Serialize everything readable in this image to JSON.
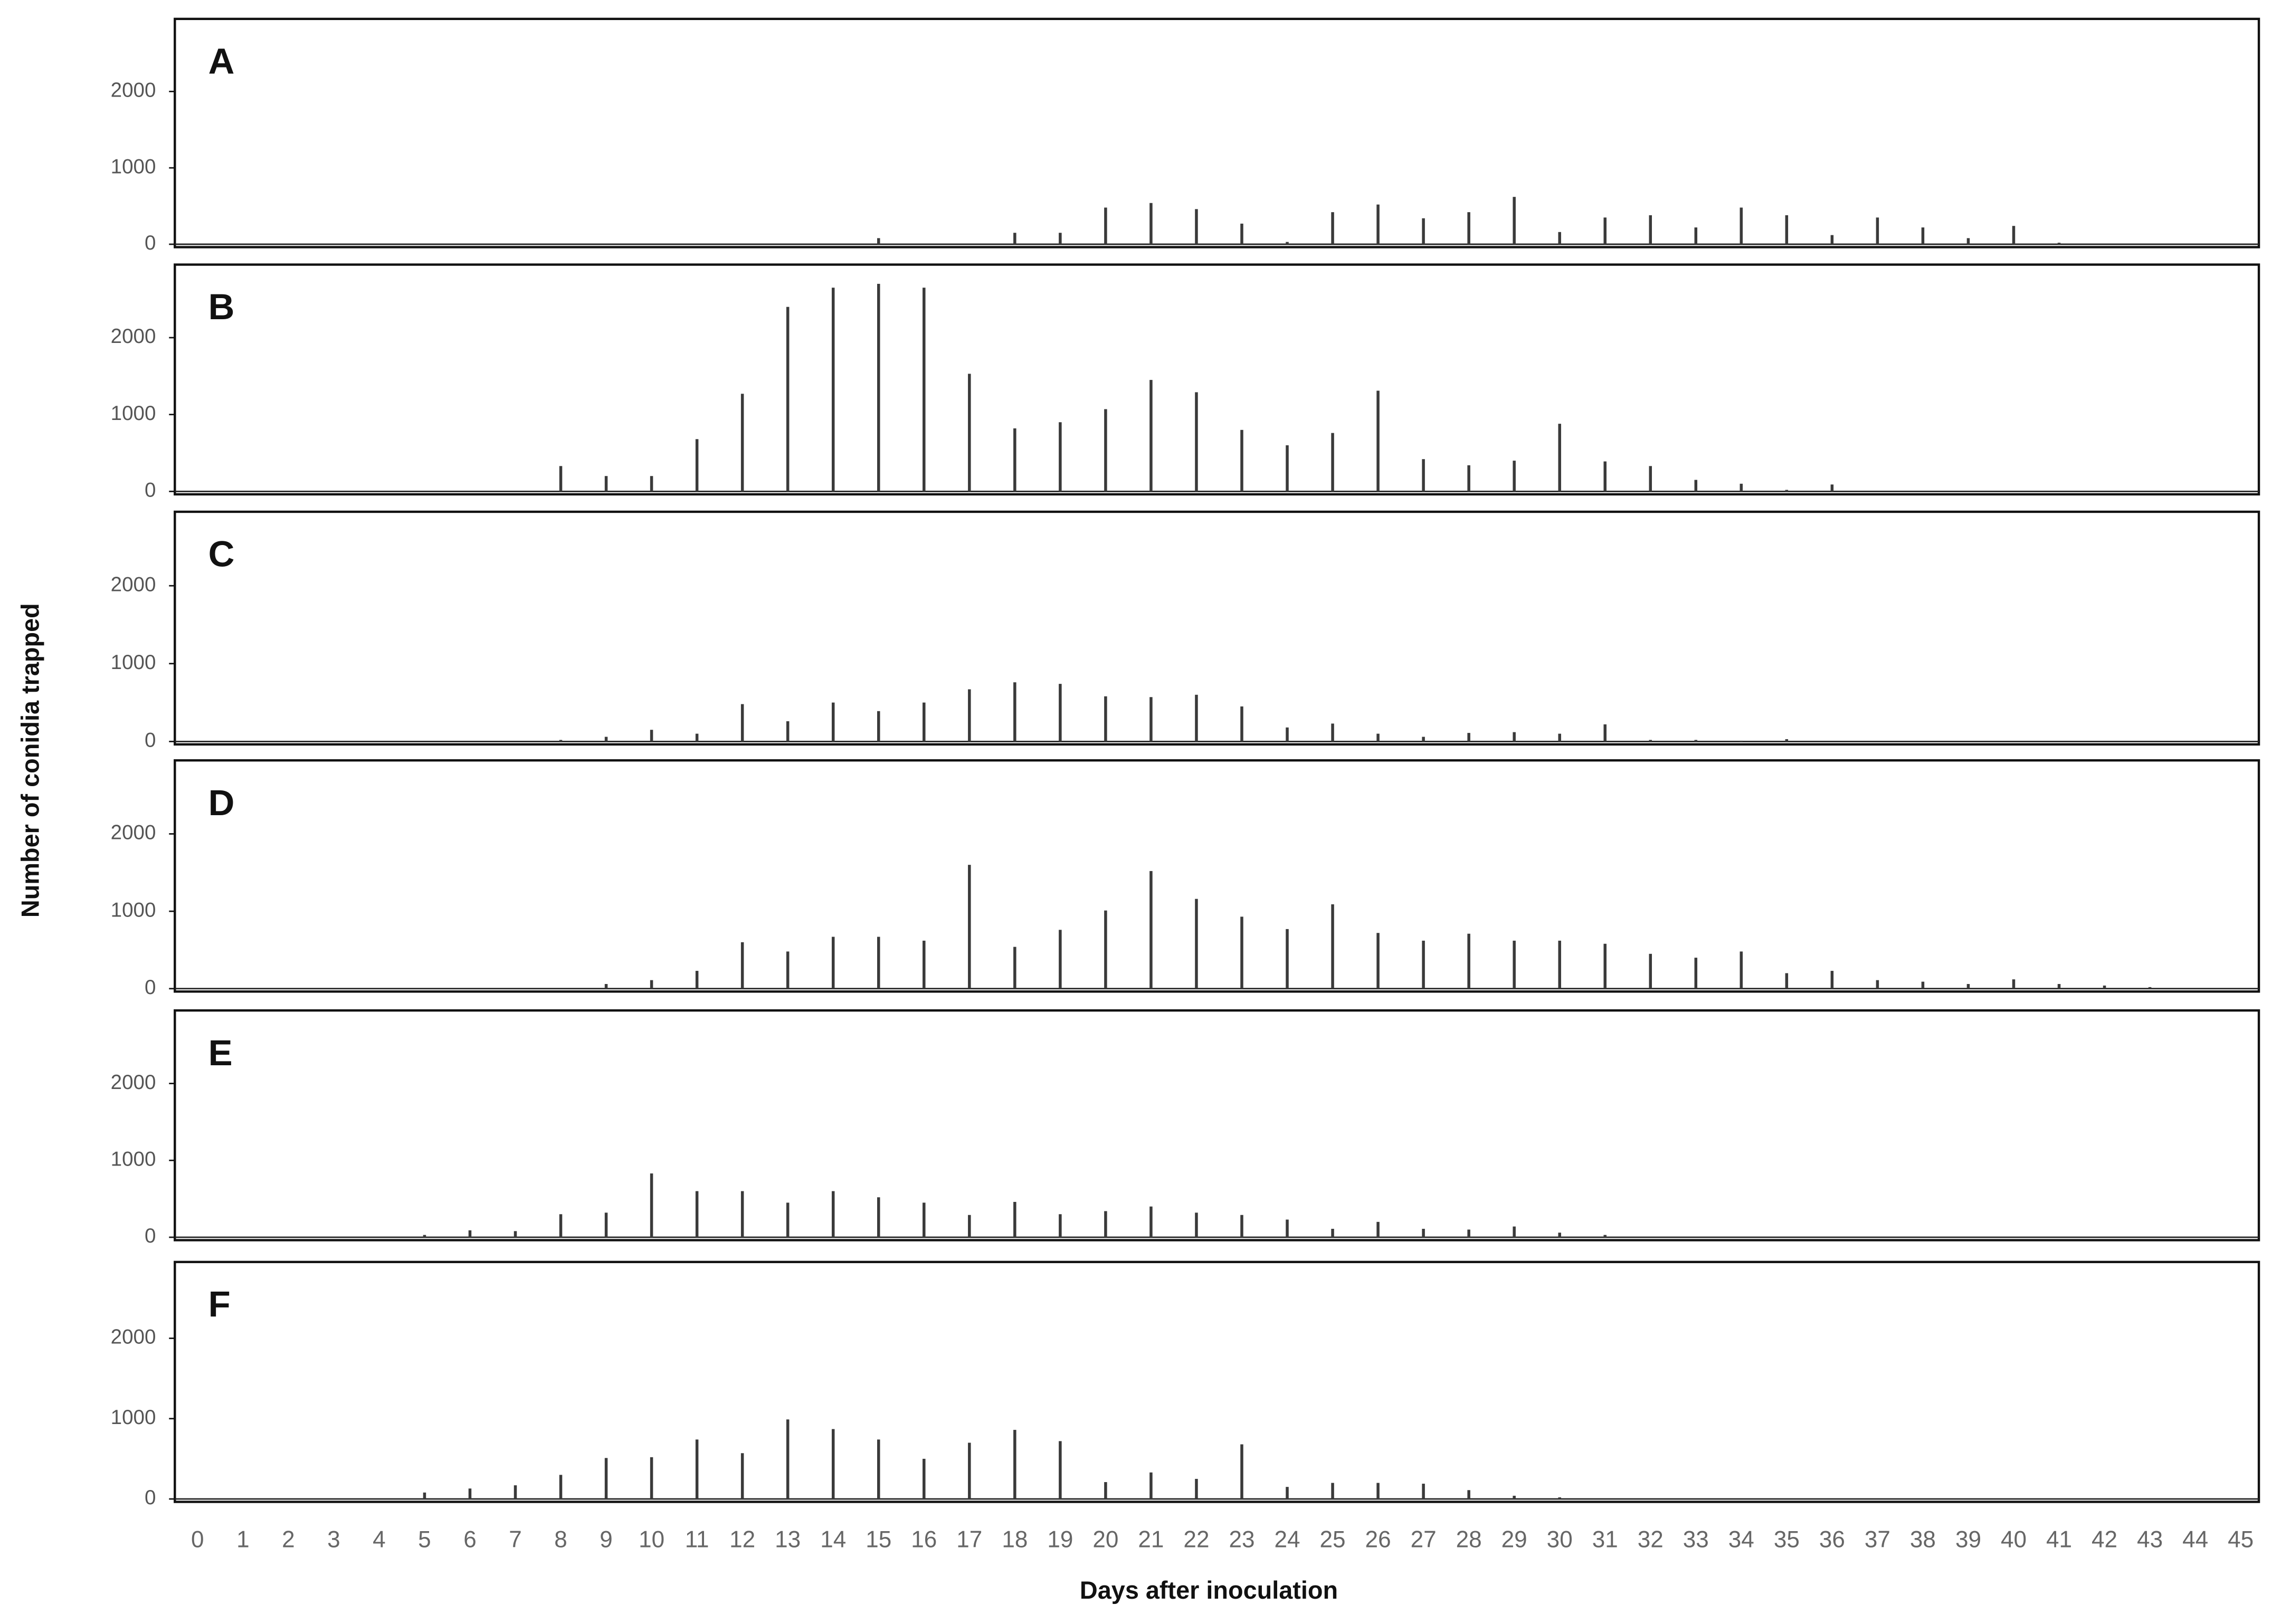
{
  "chart_data": [
    {
      "type": "bar",
      "title": "A",
      "ylabel": "Number of conidia trapped",
      "color": "#3a3a3a",
      "x": [
        0,
        1,
        2,
        3,
        4,
        5,
        6,
        7,
        8,
        9,
        10,
        11,
        12,
        13,
        14,
        15,
        16,
        17,
        18,
        19,
        20,
        21,
        22,
        23,
        24,
        25,
        26,
        27,
        28,
        29,
        30,
        31,
        32,
        33,
        34,
        35,
        36,
        37,
        38,
        39,
        40,
        41,
        42,
        43,
        44,
        45
      ],
      "values": [
        0,
        0,
        0,
        0,
        0,
        0,
        0,
        0,
        0,
        0,
        0,
        0,
        0,
        0,
        0,
        80,
        0,
        0,
        150,
        150,
        480,
        540,
        460,
        270,
        30,
        420,
        520,
        340,
        420,
        620,
        160,
        350,
        380,
        220,
        480,
        380,
        120,
        350,
        220,
        80,
        240,
        20,
        0,
        0,
        0,
        0
      ],
      "xlim": [
        -0.5,
        45.4
      ],
      "ylim": [
        0,
        2950
      ],
      "yticks": [
        0,
        1000,
        2000
      ]
    },
    {
      "type": "bar",
      "title": "B",
      "color": "#3a3a3a",
      "x": [
        0,
        1,
        2,
        3,
        4,
        5,
        6,
        7,
        8,
        9,
        10,
        11,
        12,
        13,
        14,
        15,
        16,
        17,
        18,
        19,
        20,
        21,
        22,
        23,
        24,
        25,
        26,
        27,
        28,
        29,
        30,
        31,
        32,
        33,
        34,
        35,
        36,
        37,
        38,
        39,
        40,
        41,
        42,
        43,
        44,
        45
      ],
      "values": [
        0,
        0,
        0,
        0,
        0,
        0,
        0,
        0,
        330,
        200,
        200,
        680,
        1270,
        2400,
        2650,
        2700,
        2650,
        1530,
        820,
        900,
        1070,
        1450,
        1290,
        800,
        600,
        760,
        1310,
        420,
        340,
        400,
        880,
        390,
        330,
        150,
        100,
        20,
        90,
        0,
        0,
        0,
        0,
        0,
        0,
        0,
        0,
        0
      ],
      "xlim": [
        -0.5,
        45.4
      ],
      "ylim": [
        0,
        2950
      ],
      "yticks": [
        0,
        1000,
        2000
      ]
    },
    {
      "type": "bar",
      "title": "C",
      "color": "#3a3a3a",
      "x": [
        0,
        1,
        2,
        3,
        4,
        5,
        6,
        7,
        8,
        9,
        10,
        11,
        12,
        13,
        14,
        15,
        16,
        17,
        18,
        19,
        20,
        21,
        22,
        23,
        24,
        25,
        26,
        27,
        28,
        29,
        30,
        31,
        32,
        33,
        34,
        35,
        36,
        37,
        38,
        39,
        40,
        41,
        42,
        43,
        44,
        45
      ],
      "values": [
        0,
        0,
        0,
        0,
        0,
        0,
        0,
        0,
        20,
        60,
        150,
        100,
        480,
        260,
        500,
        390,
        500,
        670,
        760,
        740,
        580,
        570,
        600,
        450,
        180,
        230,
        100,
        60,
        110,
        120,
        100,
        220,
        20,
        20,
        10,
        30,
        0,
        0,
        0,
        0,
        0,
        0,
        0,
        0,
        0,
        0
      ],
      "xlim": [
        -0.5,
        45.4
      ],
      "ylim": [
        0,
        2950
      ],
      "yticks": [
        0,
        1000,
        2000
      ]
    },
    {
      "type": "bar",
      "title": "D",
      "color": "#3a3a3a",
      "x": [
        0,
        1,
        2,
        3,
        4,
        5,
        6,
        7,
        8,
        9,
        10,
        11,
        12,
        13,
        14,
        15,
        16,
        17,
        18,
        19,
        20,
        21,
        22,
        23,
        24,
        25,
        26,
        27,
        28,
        29,
        30,
        31,
        32,
        33,
        34,
        35,
        36,
        37,
        38,
        39,
        40,
        41,
        42,
        43,
        44,
        45
      ],
      "values": [
        0,
        0,
        0,
        0,
        0,
        0,
        0,
        0,
        0,
        60,
        110,
        230,
        600,
        480,
        670,
        670,
        620,
        1600,
        540,
        760,
        1010,
        1520,
        1160,
        930,
        770,
        1090,
        720,
        620,
        710,
        620,
        620,
        580,
        450,
        400,
        480,
        200,
        230,
        110,
        90,
        60,
        120,
        60,
        40,
        20,
        0,
        0
      ],
      "xlim": [
        -0.5,
        45.4
      ],
      "ylim": [
        0,
        2950
      ],
      "yticks": [
        0,
        1000,
        2000
      ]
    },
    {
      "type": "bar",
      "title": "E",
      "color": "#3a3a3a",
      "x": [
        0,
        1,
        2,
        3,
        4,
        5,
        6,
        7,
        8,
        9,
        10,
        11,
        12,
        13,
        14,
        15,
        16,
        17,
        18,
        19,
        20,
        21,
        22,
        23,
        24,
        25,
        26,
        27,
        28,
        29,
        30,
        31,
        32,
        33,
        34,
        35,
        36,
        37,
        38,
        39,
        40,
        41,
        42,
        43,
        44,
        45
      ],
      "values": [
        0,
        0,
        0,
        0,
        0,
        30,
        90,
        80,
        300,
        320,
        830,
        600,
        600,
        450,
        600,
        520,
        450,
        290,
        460,
        300,
        340,
        400,
        320,
        290,
        230,
        110,
        200,
        110,
        100,
        140,
        60,
        30,
        0,
        0,
        0,
        0,
        0,
        0,
        0,
        0,
        0,
        0,
        0,
        0,
        0,
        0
      ],
      "xlim": [
        -0.5,
        45.4
      ],
      "ylim": [
        0,
        2950
      ],
      "yticks": [
        0,
        1000,
        2000
      ]
    },
    {
      "type": "bar",
      "title": "F",
      "color": "#3a3a3a",
      "xlabel": "Days after inoculation",
      "x": [
        0,
        1,
        2,
        3,
        4,
        5,
        6,
        7,
        8,
        9,
        10,
        11,
        12,
        13,
        14,
        15,
        16,
        17,
        18,
        19,
        20,
        21,
        22,
        23,
        24,
        25,
        26,
        27,
        28,
        29,
        30,
        31,
        32,
        33,
        34,
        35,
        36,
        37,
        38,
        39,
        40,
        41,
        42,
        43,
        44,
        45
      ],
      "values": [
        0,
        0,
        0,
        0,
        0,
        80,
        130,
        170,
        300,
        510,
        520,
        740,
        570,
        990,
        870,
        740,
        500,
        700,
        860,
        720,
        210,
        330,
        250,
        680,
        150,
        200,
        200,
        190,
        110,
        40,
        20,
        0,
        0,
        0,
        0,
        0,
        0,
        0,
        0,
        0,
        0,
        0,
        0,
        0,
        0,
        0
      ],
      "xlim": [
        -0.5,
        45.4
      ],
      "ylim": [
        0,
        2950
      ],
      "yticks": [
        0,
        1000,
        2000
      ],
      "xticks": [
        0,
        1,
        2,
        3,
        4,
        5,
        6,
        7,
        8,
        9,
        10,
        11,
        12,
        13,
        14,
        15,
        16,
        17,
        18,
        19,
        20,
        21,
        22,
        23,
        24,
        25,
        26,
        27,
        28,
        29,
        30,
        31,
        32,
        33,
        34,
        35,
        36,
        37,
        38,
        39,
        40,
        41,
        42,
        43,
        44,
        45
      ]
    }
  ]
}
